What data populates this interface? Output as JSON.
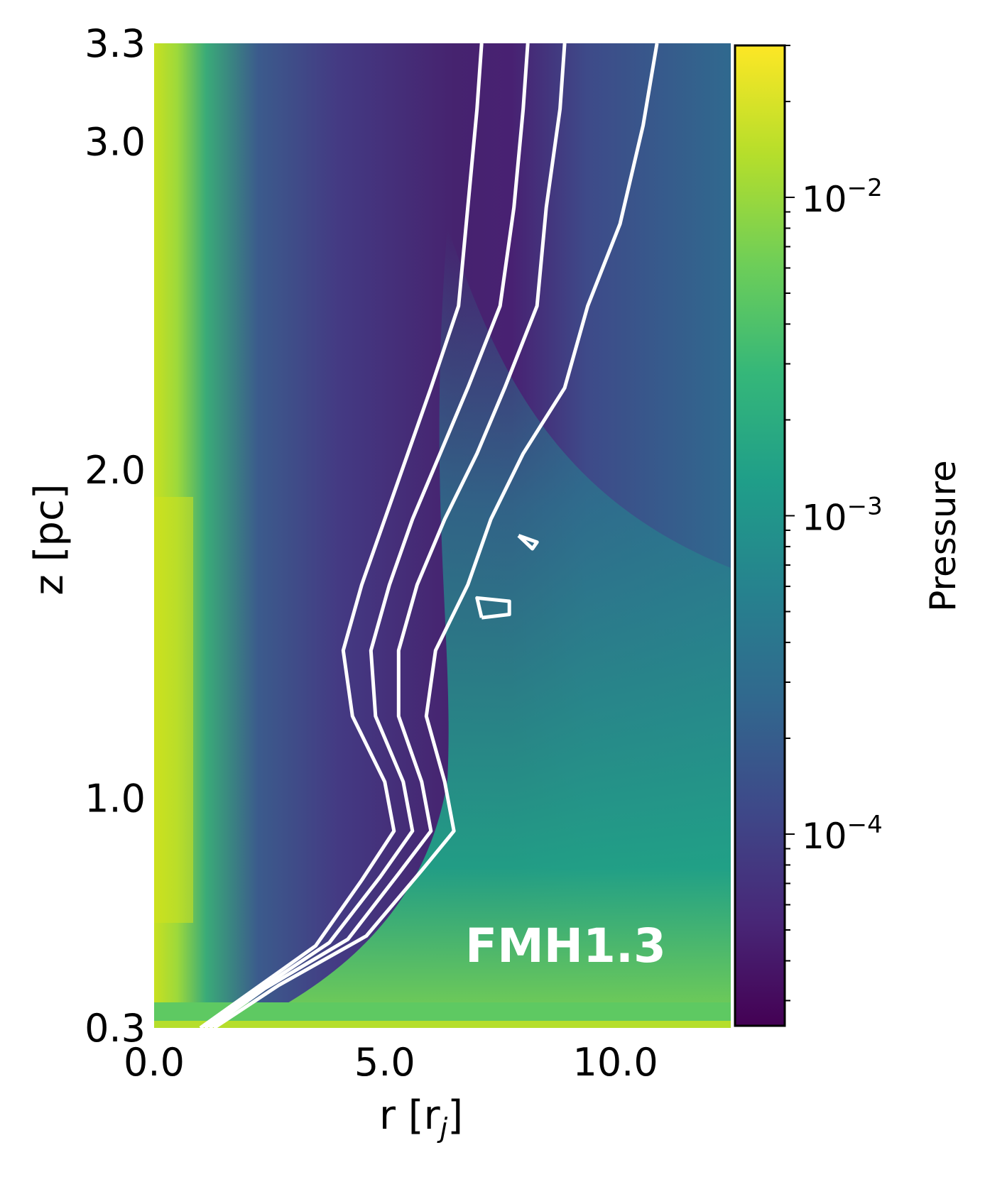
{
  "chart_data": {
    "type": "heatmap",
    "title": "",
    "xlabel": "r [r_j]",
    "ylabel": "z [pc]",
    "xlim": [
      0.0,
      12.5
    ],
    "ylim": [
      0.3,
      3.3
    ],
    "x_ticks": [
      "0.0",
      "5.0",
      "10.0"
    ],
    "x_tick_values": [
      0.0,
      5.0,
      10.0
    ],
    "y_ticks": [
      "0.3",
      "1.0",
      "2.0",
      "3.0",
      "3.3"
    ],
    "y_tick_values": [
      0.3,
      1.0,
      2.0,
      3.0,
      3.3
    ],
    "colormap": "viridis",
    "colorbar": {
      "label": "Pressure",
      "scale": "log",
      "range": [
        2.5e-05,
        0.03
      ],
      "ticks": [
        {
          "value": 0.01,
          "base": "10",
          "exp": "−2"
        },
        {
          "value": 0.001,
          "base": "10",
          "exp": "−3"
        },
        {
          "value": 0.0001,
          "base": "10",
          "exp": "−4"
        }
      ]
    },
    "annotation": "FMH1.3",
    "contour_color": "#ffffff",
    "contours": [
      {
        "points": [
          [
            1.0,
            0.3
          ],
          [
            2.0,
            0.4
          ],
          [
            3.5,
            0.55
          ],
          [
            4.5,
            0.75
          ],
          [
            5.2,
            0.9
          ],
          [
            5.0,
            1.05
          ],
          [
            4.3,
            1.25
          ],
          [
            4.1,
            1.45
          ],
          [
            4.5,
            1.65
          ],
          [
            5.0,
            1.85
          ],
          [
            5.5,
            2.05
          ],
          [
            6.0,
            2.25
          ],
          [
            6.6,
            2.5
          ],
          [
            6.8,
            2.8
          ],
          [
            7.0,
            3.1
          ],
          [
            7.1,
            3.3
          ]
        ]
      },
      {
        "points": [
          [
            1.1,
            0.3
          ],
          [
            2.2,
            0.41
          ],
          [
            3.8,
            0.56
          ],
          [
            4.9,
            0.76
          ],
          [
            5.6,
            0.9
          ],
          [
            5.4,
            1.05
          ],
          [
            4.8,
            1.25
          ],
          [
            4.7,
            1.45
          ],
          [
            5.1,
            1.65
          ],
          [
            5.6,
            1.85
          ],
          [
            6.2,
            2.05
          ],
          [
            6.8,
            2.25
          ],
          [
            7.5,
            2.5
          ],
          [
            7.8,
            2.8
          ],
          [
            8.0,
            3.1
          ],
          [
            8.1,
            3.3
          ]
        ]
      },
      {
        "points": [
          [
            1.2,
            0.3
          ],
          [
            2.4,
            0.42
          ],
          [
            4.2,
            0.57
          ],
          [
            5.3,
            0.77
          ],
          [
            6.0,
            0.9
          ],
          [
            5.8,
            1.05
          ],
          [
            5.3,
            1.25
          ],
          [
            5.3,
            1.45
          ],
          [
            5.7,
            1.65
          ],
          [
            6.3,
            1.85
          ],
          [
            7.0,
            2.05
          ],
          [
            7.6,
            2.25
          ],
          [
            8.3,
            2.5
          ],
          [
            8.5,
            2.8
          ],
          [
            8.8,
            3.1
          ],
          [
            8.9,
            3.3
          ]
        ]
      },
      {
        "points": [
          [
            1.3,
            0.3
          ],
          [
            2.7,
            0.43
          ],
          [
            4.6,
            0.58
          ],
          [
            5.8,
            0.78
          ],
          [
            6.5,
            0.9
          ],
          [
            6.3,
            1.05
          ],
          [
            5.9,
            1.25
          ],
          [
            6.1,
            1.45
          ],
          [
            6.8,
            1.65
          ],
          [
            7.3,
            1.85
          ],
          [
            8.0,
            2.05
          ],
          [
            8.9,
            2.25
          ],
          [
            9.4,
            2.5
          ],
          [
            10.1,
            2.75
          ],
          [
            10.6,
            3.05
          ],
          [
            10.9,
            3.3
          ]
        ]
      },
      {
        "points": [
          [
            7.1,
            1.55
          ],
          [
            7.7,
            1.56
          ],
          [
            7.7,
            1.6
          ],
          [
            7.0,
            1.61
          ],
          [
            7.1,
            1.55
          ]
        ]
      },
      {
        "points": [
          [
            7.9,
            1.8
          ],
          [
            8.3,
            1.78
          ],
          [
            8.2,
            1.76
          ],
          [
            7.9,
            1.8
          ]
        ]
      }
    ]
  }
}
